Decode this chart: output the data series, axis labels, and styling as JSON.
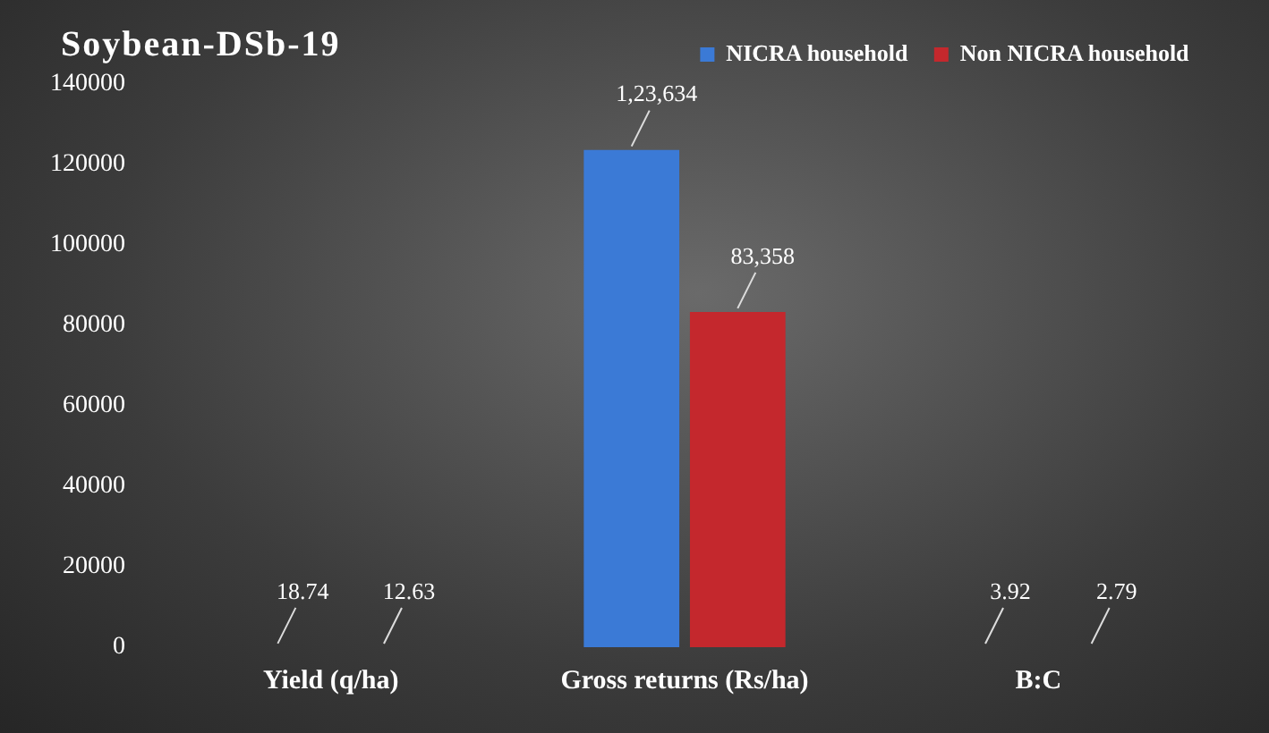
{
  "chart_data": {
    "type": "bar",
    "title": "Soybean-DSb-19",
    "categories": [
      "Yield (q/ha)",
      "Gross returns (Rs/ha)",
      "B:C"
    ],
    "series": [
      {
        "name": "NICRA household",
        "color": "#3b7ad6",
        "values": [
          18.74,
          123634,
          3.92
        ],
        "value_labels": [
          "18.74",
          "1,23,634",
          "3.92"
        ]
      },
      {
        "name": "Non NICRA household",
        "color": "#c4282d",
        "values": [
          12.63,
          83358,
          2.79
        ],
        "value_labels": [
          "12.63",
          "83,358",
          "2.79"
        ]
      }
    ],
    "ylim": [
      0,
      140000
    ],
    "yticks": [
      0,
      20000,
      40000,
      60000,
      80000,
      100000,
      120000,
      140000
    ],
    "grid": false,
    "legend": "top right"
  }
}
